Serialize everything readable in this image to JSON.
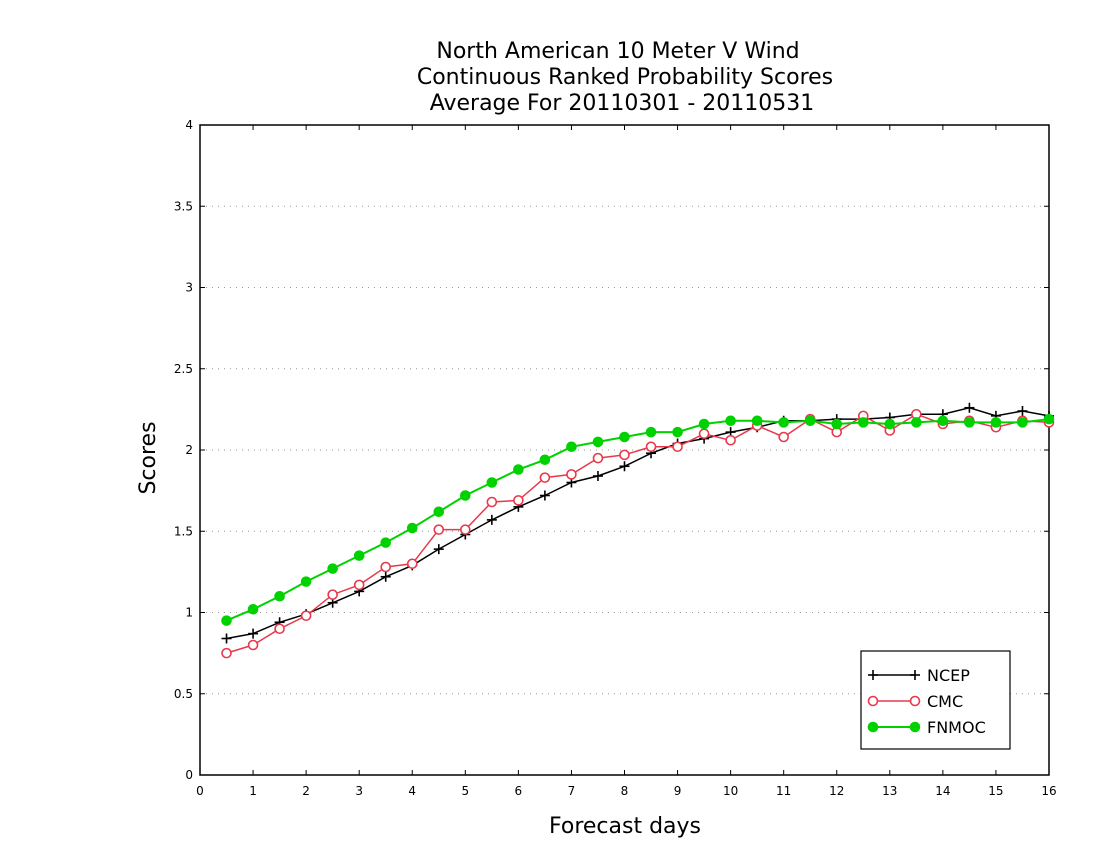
{
  "chart_data": {
    "type": "line",
    "title": [
      "North American 10 Meter V Wind",
      "Continuous Ranked Probability Scores",
      "Average For 20110301 - 20110531"
    ],
    "xlabel": "Forecast days",
    "ylabel": "Scores",
    "xlim": [
      0,
      16
    ],
    "ylim": [
      0,
      4
    ],
    "xticks": [
      0,
      1,
      2,
      3,
      4,
      5,
      6,
      7,
      8,
      9,
      10,
      11,
      12,
      13,
      14,
      15,
      16
    ],
    "yticks": [
      0,
      0.5,
      1,
      1.5,
      2,
      2.5,
      3,
      3.5,
      4
    ],
    "ytick_labels": [
      "0",
      "0.5",
      "1",
      "1.5",
      "2",
      "2.5",
      "3",
      "3.5",
      "4"
    ],
    "grid": "horizontal dotted",
    "legend_position": "bottom-right",
    "x": [
      0.5,
      1,
      1.5,
      2,
      2.5,
      3,
      3.5,
      4,
      4.5,
      5,
      5.5,
      6,
      6.5,
      7,
      7.5,
      8,
      8.5,
      9,
      9.5,
      10,
      10.5,
      11,
      11.5,
      12,
      12.5,
      13,
      13.5,
      14,
      14.5,
      15,
      15.5,
      16
    ],
    "series": [
      {
        "name": "NCEP",
        "color": "#000000",
        "marker": "plus",
        "values": [
          0.84,
          0.87,
          0.94,
          0.99,
          1.06,
          1.13,
          1.22,
          1.29,
          1.39,
          1.48,
          1.57,
          1.65,
          1.72,
          1.8,
          1.84,
          1.9,
          1.98,
          2.04,
          2.07,
          2.11,
          2.14,
          2.18,
          2.18,
          2.19,
          2.19,
          2.2,
          2.22,
          2.22,
          2.26,
          2.21,
          2.24,
          2.21
        ]
      },
      {
        "name": "CMC",
        "color": "#e8394a",
        "marker": "open-circle",
        "values": [
          0.75,
          0.8,
          0.9,
          0.98,
          1.11,
          1.17,
          1.28,
          1.3,
          1.51,
          1.51,
          1.68,
          1.69,
          1.83,
          1.85,
          1.95,
          1.97,
          2.02,
          2.02,
          2.1,
          2.06,
          2.15,
          2.08,
          2.19,
          2.11,
          2.21,
          2.12,
          2.22,
          2.16,
          2.18,
          2.14,
          2.18,
          2.17
        ]
      },
      {
        "name": "FNMOC",
        "color": "#00d200",
        "marker": "filled-circle",
        "values": [
          0.95,
          1.02,
          1.1,
          1.19,
          1.27,
          1.35,
          1.43,
          1.52,
          1.62,
          1.72,
          1.8,
          1.88,
          1.94,
          2.02,
          2.05,
          2.08,
          2.11,
          2.11,
          2.16,
          2.18,
          2.18,
          2.17,
          2.18,
          2.16,
          2.17,
          2.16,
          2.17,
          2.18,
          2.17,
          2.17,
          2.17,
          2.19
        ]
      }
    ]
  }
}
